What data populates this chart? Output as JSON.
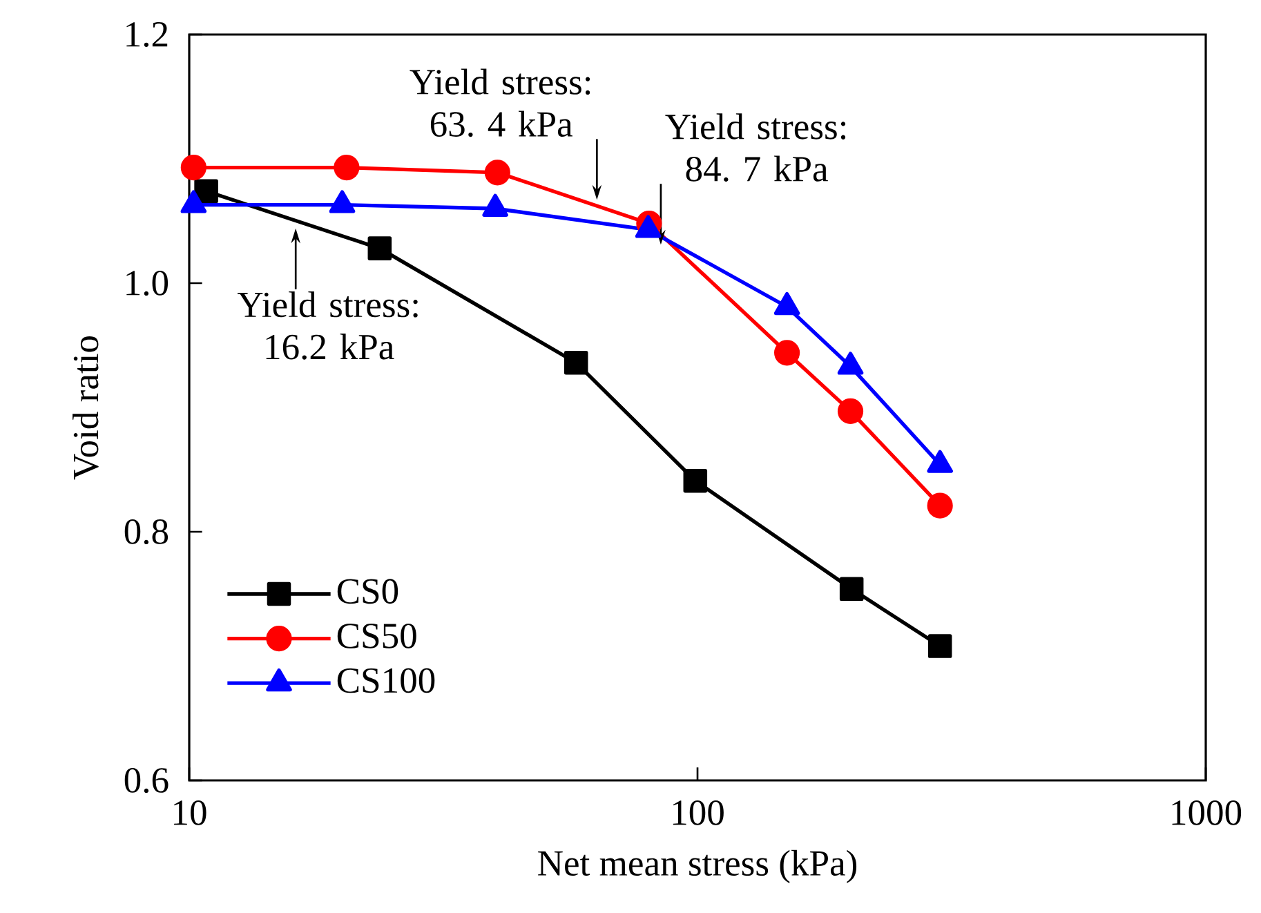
{
  "chart_data": {
    "type": "line",
    "xlabel": "Net mean stress (kPa)",
    "ylabel": "Void ratio",
    "log": "x",
    "xlim": [
      10,
      1000
    ],
    "ylim": [
      0.6,
      1.2
    ],
    "xticks": [
      10,
      100,
      1000
    ],
    "yticks": [
      0.6,
      0.8,
      {
        "value": 1.0,
        "label": "1.0"
      },
      1.2
    ],
    "grid": false,
    "legend": "bottom left",
    "line_style": "solid",
    "series": [
      {
        "name": "CS0",
        "color": "#000000",
        "marker": "square",
        "x": [
          10.8,
          23.7,
          57.7,
          99,
          201,
          300
        ],
        "values": [
          1.074,
          1.028,
          0.936,
          0.841,
          0.754,
          0.708
        ]
      },
      {
        "name": "CS50",
        "color": "#ff0000",
        "marker": "circle",
        "x": [
          10.2,
          20.4,
          40.4,
          80.3,
          150,
          200,
          300
        ],
        "values": [
          1.093,
          1.093,
          1.089,
          1.048,
          0.944,
          0.897,
          0.821
        ]
      },
      {
        "name": "CS100",
        "color": "#0000ff",
        "marker": "triangle",
        "x": [
          10.2,
          20,
          40,
          80,
          150,
          200,
          300
        ],
        "values": [
          1.063,
          1.063,
          1.06,
          1.043,
          0.981,
          0.933,
          0.854
        ]
      }
    ],
    "annotations": [
      {
        "text": "Yield stress: 16.2 kPa",
        "x": 16.2,
        "y": 1.044
      },
      {
        "text": "Yield stress: 63. 4 kPa",
        "x": 63.4,
        "y": 1.067
      },
      {
        "text": "Yield stress: 84. 7 kPa",
        "x": 84.7,
        "y": 1.031
      }
    ]
  }
}
